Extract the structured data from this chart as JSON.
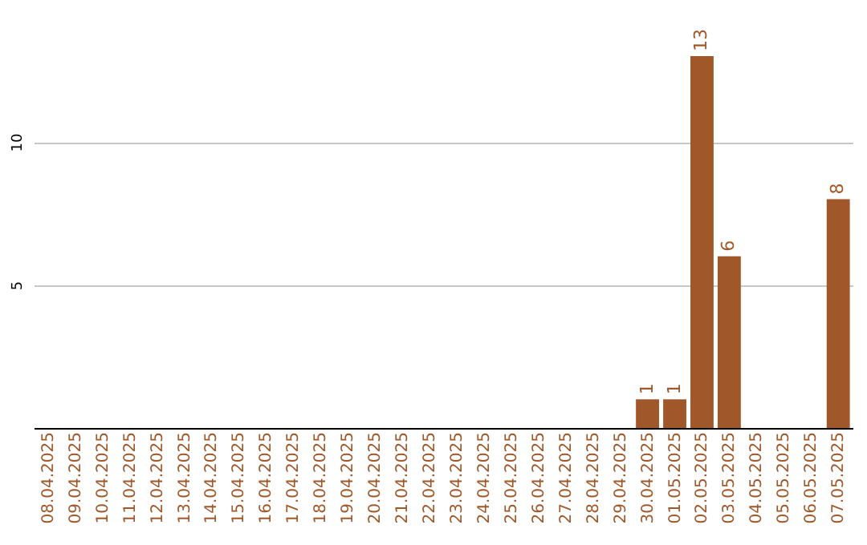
{
  "chart_data": {
    "type": "bar",
    "categories": [
      "08.04.2025",
      "09.04.2025",
      "10.04.2025",
      "11.04.2025",
      "12.04.2025",
      "13.04.2025",
      "14.04.2025",
      "15.04.2025",
      "16.04.2025",
      "17.04.2025",
      "18.04.2025",
      "19.04.2025",
      "20.04.2025",
      "21.04.2025",
      "22.04.2025",
      "23.04.2025",
      "24.04.2025",
      "25.04.2025",
      "26.04.2025",
      "27.04.2025",
      "28.04.2025",
      "29.04.2025",
      "30.04.2025",
      "01.05.2025",
      "02.05.2025",
      "03.05.2025",
      "04.05.2025",
      "05.05.2025",
      "06.05.2025",
      "07.05.2025"
    ],
    "values": [
      0,
      0,
      0,
      0,
      0,
      0,
      0,
      0,
      0,
      0,
      0,
      0,
      0,
      0,
      0,
      0,
      0,
      0,
      0,
      0,
      0,
      0,
      1,
      1,
      13,
      6,
      0,
      0,
      0,
      8
    ],
    "value_labels": [
      null,
      null,
      null,
      null,
      null,
      null,
      null,
      null,
      null,
      null,
      null,
      null,
      null,
      null,
      null,
      null,
      null,
      null,
      null,
      null,
      null,
      null,
      "1",
      "1",
      "13",
      "6",
      null,
      null,
      null,
      "8"
    ],
    "color": "#a0582a",
    "ylim": [
      0,
      13
    ],
    "yticks": [
      5,
      10
    ],
    "grid": "y"
  }
}
